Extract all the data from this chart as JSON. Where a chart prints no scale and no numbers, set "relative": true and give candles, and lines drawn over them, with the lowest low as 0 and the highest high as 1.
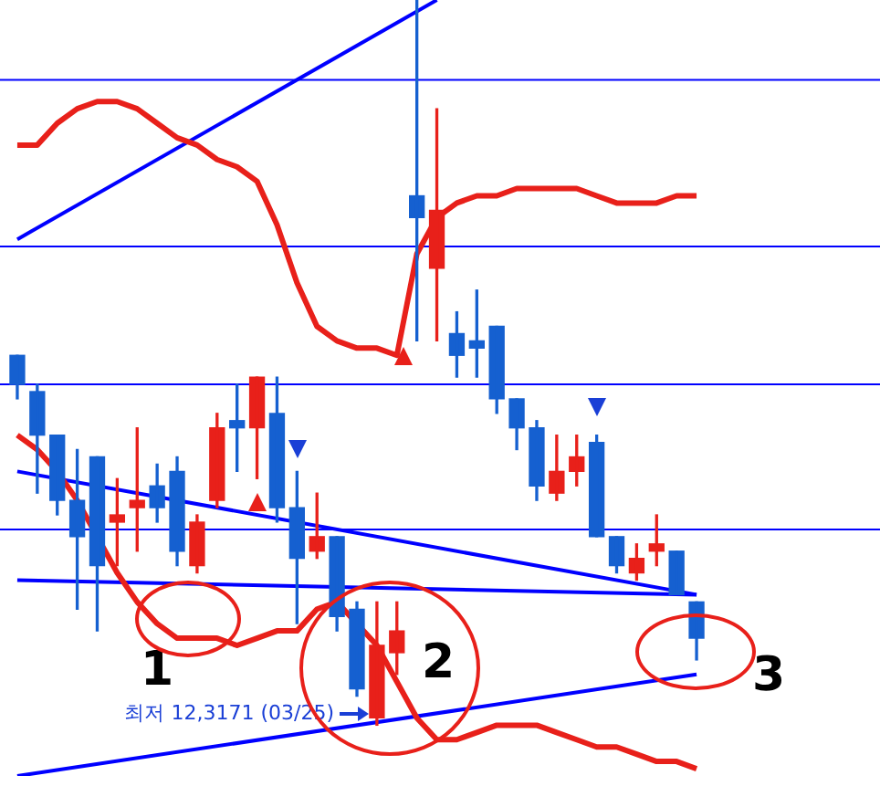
{
  "chart_data": {
    "type": "candlestick",
    "relative": true,
    "categories": [
      null,
      null,
      null,
      null,
      null,
      null,
      null,
      null,
      null,
      null,
      null,
      null,
      null,
      null,
      null,
      null,
      null,
      null,
      null,
      null,
      null,
      null,
      null,
      null,
      null,
      null,
      null,
      null,
      null,
      null,
      null,
      null,
      null,
      null,
      null
    ],
    "ohlc": [
      [
        0.51,
        0.51,
        0.45,
        0.47
      ],
      [
        0.46,
        0.47,
        0.32,
        0.4
      ],
      [
        0.4,
        0.4,
        0.29,
        0.31
      ],
      [
        0.31,
        0.38,
        0.16,
        0.26
      ],
      [
        0.37,
        0.37,
        0.13,
        0.22
      ],
      [
        0.28,
        0.34,
        0.22,
        0.29
      ],
      [
        0.3,
        0.41,
        0.24,
        0.31
      ],
      [
        0.33,
        0.36,
        0.28,
        0.3
      ],
      [
        0.35,
        0.37,
        0.22,
        0.24
      ],
      [
        0.22,
        0.29,
        0.21,
        0.28
      ],
      [
        0.31,
        0.43,
        0.3,
        0.41
      ],
      [
        0.42,
        0.47,
        0.35,
        0.41
      ],
      [
        0.41,
        0.48,
        0.34,
        0.48
      ],
      [
        0.43,
        0.48,
        0.28,
        0.3
      ],
      [
        0.3,
        0.35,
        0.14,
        0.23
      ],
      [
        0.24,
        0.32,
        0.23,
        0.26
      ],
      [
        0.26,
        0.26,
        0.13,
        0.15
      ],
      [
        0.16,
        0.17,
        0.04,
        0.05
      ],
      [
        0.01,
        0.17,
        0,
        0.11
      ],
      [
        0.1,
        0.17,
        0.07,
        0.13
      ],
      [
        0.73,
        1,
        0.53,
        0.7
      ],
      [
        0.63,
        0.85,
        0.53,
        0.71
      ],
      [
        0.54,
        0.57,
        0.48,
        0.51
      ],
      [
        0.53,
        0.6,
        0.48,
        0.52
      ],
      [
        0.55,
        0.55,
        0.43,
        0.45
      ],
      [
        0.45,
        0.45,
        0.38,
        0.41
      ],
      [
        0.41,
        0.42,
        0.31,
        0.33
      ],
      [
        0.32,
        0.4,
        0.31,
        0.35
      ],
      [
        0.35,
        0.4,
        0.33,
        0.37
      ],
      [
        0.39,
        0.4,
        0.26,
        0.26
      ],
      [
        0.26,
        0.26,
        0.21,
        0.22
      ],
      [
        0.21,
        0.25,
        0.2,
        0.23
      ],
      [
        0.24,
        0.29,
        0.22,
        0.25
      ],
      [
        0.24,
        0.24,
        0.18,
        0.18
      ],
      [
        0.17,
        0.17,
        0.09,
        0.12
      ]
    ],
    "colors": [
      "#1560d0",
      "#1560d0",
      "#1560d0",
      "#1560d0",
      "#1560d0",
      "#e8201a",
      "#e8201a",
      "#1560d0",
      "#1560d0",
      "#e8201a",
      "#e8201a",
      "#1560d0",
      "#e8201a",
      "#1560d0",
      "#1560d0",
      "#e8201a",
      "#1560d0",
      "#1560d0",
      "#e8201a",
      "#e8201a",
      "#1560d0",
      "#e8201a",
      "#1560d0",
      "#1560d0",
      "#1560d0",
      "#1560d0",
      "#1560d0",
      "#e8201a",
      "#e8201a",
      "#1560d0",
      "#1560d0",
      "#e8201a",
      "#e8201a",
      "#1560d0",
      "#1560d0"
    ],
    "series": [
      {
        "type": "line",
        "color": "#e8201a",
        "values": [
          0.8,
          0.8,
          0.83,
          0.85,
          0.86,
          0.86,
          0.85,
          0.83,
          0.81,
          0.8,
          0.78,
          0.77,
          0.75,
          0.69,
          0.61,
          0.55,
          0.53,
          0.52,
          0.52,
          0.51,
          0.65,
          0.7,
          0.72,
          0.73,
          0.73,
          0.74,
          0.74,
          0.74,
          0.74,
          0.73,
          0.72,
          0.72,
          0.72,
          0.73,
          0.73
        ]
      },
      {
        "type": "line",
        "color": "#e8201a",
        "values": [
          0.4,
          0.38,
          0.35,
          0.31,
          null,
          0.21,
          0.17,
          0.14,
          0.12,
          0.12,
          0.12,
          0.11,
          0.12,
          0.13,
          0.13,
          0.16,
          0.17,
          null,
          0.11,
          0.06,
          0.01,
          -0.02,
          -0.02,
          -0.01,
          0,
          0,
          0,
          -0.01,
          -0.02,
          -0.03,
          -0.03,
          -0.04,
          -0.05,
          -0.05,
          -0.06
        ]
      },
      {
        "type": "line",
        "color": "#0000ff",
        "values": [
          0.35,
          null,
          null,
          null,
          null,
          null,
          null,
          null,
          null,
          null,
          null,
          null,
          null,
          null,
          null,
          null,
          null,
          null,
          null,
          null,
          null,
          null,
          null,
          null,
          null,
          null,
          null,
          null,
          null,
          null,
          null,
          null,
          null,
          null,
          0.18
        ]
      },
      {
        "type": "line",
        "color": "#0000ff",
        "values": [
          0.2,
          null,
          null,
          null,
          null,
          null,
          null,
          null,
          null,
          null,
          null,
          null,
          null,
          null,
          null,
          null,
          null,
          null,
          null,
          null,
          null,
          null,
          null,
          null,
          null,
          null,
          null,
          null,
          null,
          null,
          null,
          null,
          null,
          null,
          0.18
        ]
      },
      {
        "type": "line",
        "color": "#0000ff",
        "values": [
          -0.07,
          null,
          null,
          null,
          null,
          null,
          null,
          null,
          null,
          null,
          null,
          null,
          null,
          null,
          null,
          null,
          null,
          null,
          null,
          null,
          null,
          null,
          null,
          null,
          null,
          null,
          null,
          null,
          null,
          null,
          null,
          null,
          null,
          null,
          0.07
        ]
      },
      {
        "type": "line",
        "color": "#0000ff",
        "values": [
          0.67,
          null,
          null,
          null,
          null,
          null,
          null,
          null,
          null,
          null,
          null,
          null,
          null,
          null,
          null,
          null,
          null,
          null,
          null,
          null,
          null,
          1.0,
          null,
          null,
          null,
          null,
          null,
          null,
          null,
          null,
          null,
          null,
          null,
          null,
          null
        ]
      }
    ],
    "ref_lines": [
      {
        "axis": "y",
        "value": 0.89,
        "color": "#0000ff"
      },
      {
        "axis": "y",
        "value": 0.66,
        "color": "#0000ff"
      },
      {
        "axis": "y",
        "value": 0.47,
        "color": "#0000ff"
      },
      {
        "axis": "y",
        "value": 0.27,
        "color": "#0000ff"
      }
    ],
    "annotations": [
      "1",
      "2",
      "3",
      "최저 12,3171 (03/25)"
    ]
  }
}
